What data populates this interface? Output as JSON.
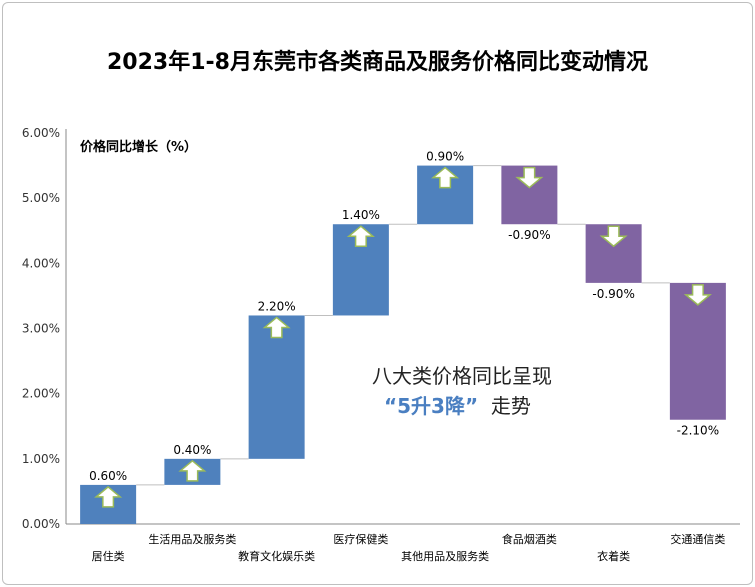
{
  "chart_data": {
    "type": "bar",
    "subtype": "waterfall",
    "title": "2023年1-8月东莞市各类商品及服务价格同比变动情况",
    "ylabel": "价格同比增长（%）",
    "ylim": [
      0,
      6
    ],
    "yticks": [
      "0.00%",
      "1.00%",
      "2.00%",
      "3.00%",
      "4.00%",
      "5.00%",
      "6.00%"
    ],
    "categories": [
      "居住类",
      "生活用品及服务类",
      "教育文化娱乐类",
      "医疗保健类",
      "其他用品及服务类",
      "食品烟酒类",
      "衣着类",
      "交通通信类"
    ],
    "values": [
      0.6,
      0.4,
      2.2,
      1.4,
      0.9,
      -0.9,
      -0.9,
      -2.1
    ],
    "value_labels": [
      "0.60%",
      "0.40%",
      "2.20%",
      "1.40%",
      "0.90%",
      "-0.90%",
      "-0.90%",
      "-2.10%"
    ],
    "colors": {
      "increase": "#4f81bd",
      "decrease": "#8064a2",
      "arrow_fill": "#ffffff",
      "arrow_stroke": "#9bbb59"
    },
    "annotation_line1": "八大类价格同比呈现",
    "annotation_hl": "“5升3降”",
    "annotation_tail": "走势"
  }
}
